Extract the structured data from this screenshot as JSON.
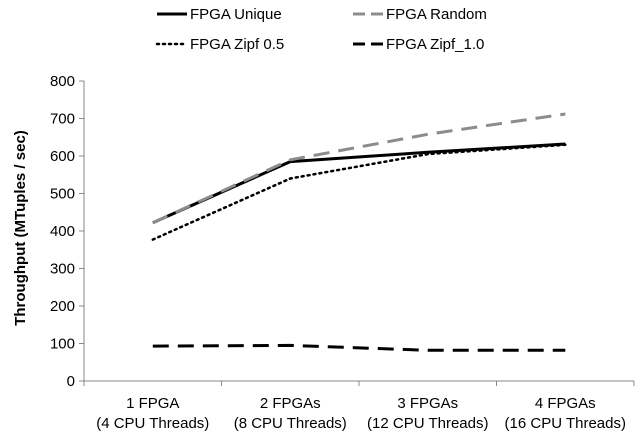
{
  "chart_data": {
    "type": "line",
    "title": "",
    "xlabel": "",
    "ylabel": "Throughput (MTuples / sec)",
    "ylim": [
      0,
      800
    ],
    "yticks": [
      0,
      100,
      200,
      300,
      400,
      500,
      600,
      700,
      800
    ],
    "grid": false,
    "legend_position": "top",
    "categories": [
      [
        "1 FPGA",
        "(4 CPU Threads)"
      ],
      [
        "2 FPGAs",
        "(8 CPU Threads)"
      ],
      [
        "3 FPGAs",
        "(12 CPU Threads)"
      ],
      [
        "4 FPGAs",
        "(16 CPU Threads)"
      ]
    ],
    "series": [
      {
        "name": "FPGA Unique",
        "values": [
          422,
          585,
          610,
          632
        ],
        "color": "#000000",
        "dash": "solid"
      },
      {
        "name": "FPGA Random",
        "values": [
          422,
          590,
          658,
          712
        ],
        "color": "#8c8c8c",
        "dash": "long-dash"
      },
      {
        "name": "FPGA Zipf 0.5",
        "values": [
          377,
          540,
          605,
          630
        ],
        "color": "#000000",
        "dash": "dot"
      },
      {
        "name": "FPGA Zipf_1.0",
        "values": [
          93,
          95,
          82,
          82
        ],
        "color": "#000000",
        "dash": "long-dash"
      }
    ]
  }
}
